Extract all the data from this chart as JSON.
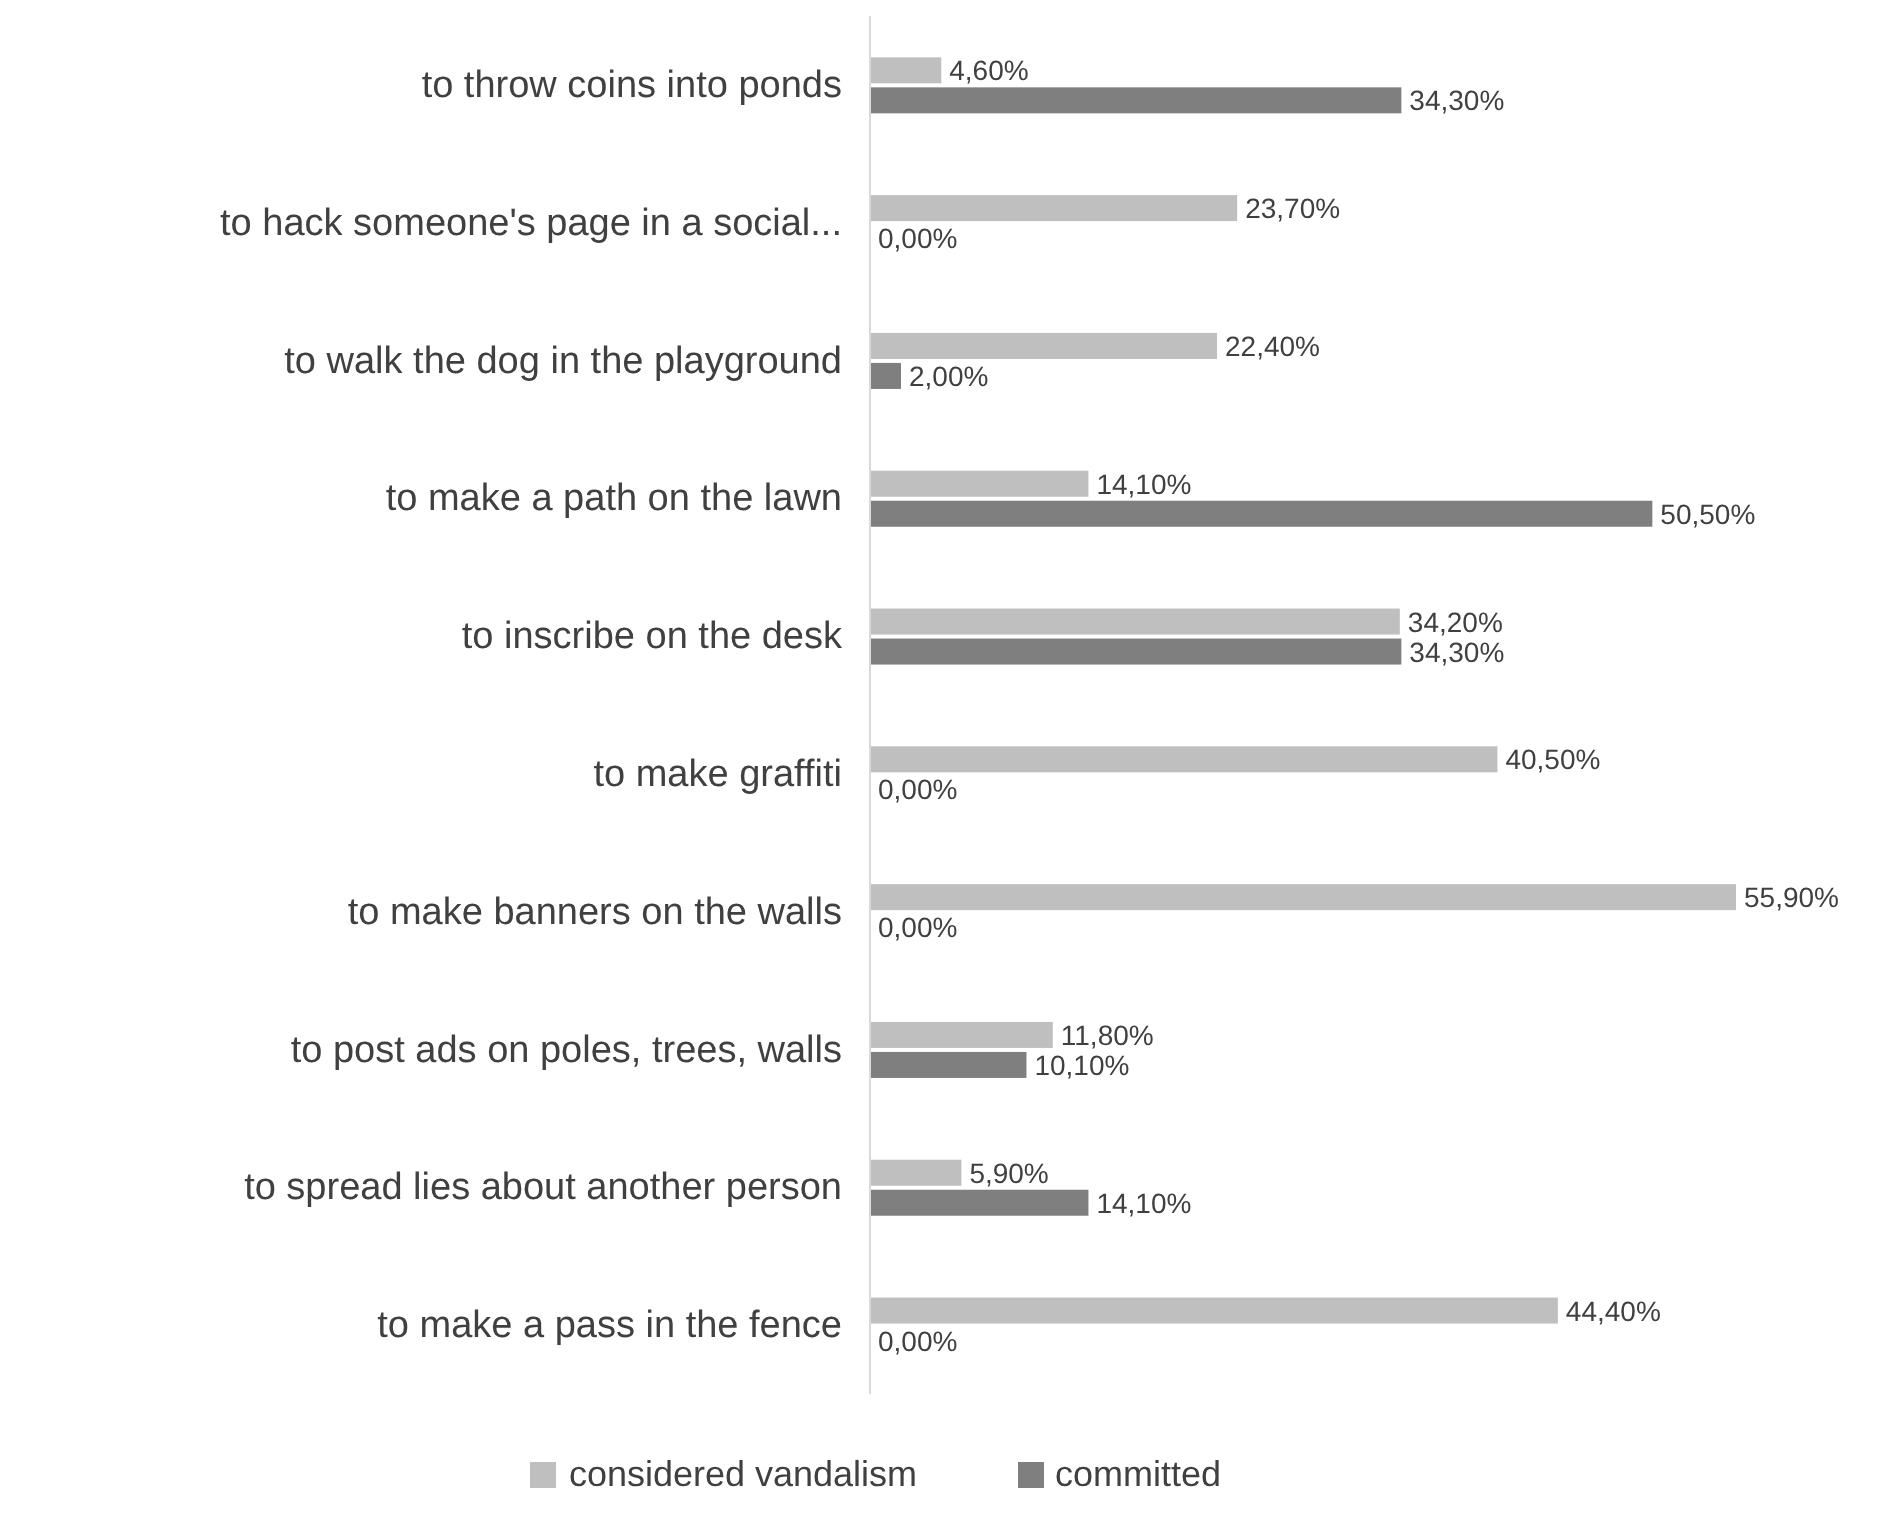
{
  "chart_data": {
    "type": "bar",
    "orientation": "horizontal",
    "categories": [
      "to throw coins into ponds",
      "to hack someone's page in a social...",
      "to walk the dog in the playground",
      "to make a path on the lawn",
      "to inscribe on the desk",
      "to make graffiti",
      "to make banners on the walls",
      "to post ads on poles, trees, walls",
      "to spread lies about another person",
      "to make a pass in the fence"
    ],
    "series": [
      {
        "name": "considered vandalism",
        "color": "#bfbfbf",
        "values": [
          4.6,
          23.7,
          22.4,
          14.1,
          34.2,
          40.5,
          55.9,
          11.8,
          5.9,
          44.4
        ],
        "value_labels": [
          "4,60%",
          "23,70%",
          "22,40%",
          "14,10%",
          "34,20%",
          "40,50%",
          "55,90%",
          "11,80%",
          "5,90%",
          "44,40%"
        ]
      },
      {
        "name": "committed",
        "color": "#7f7f7f",
        "values": [
          34.3,
          0,
          2,
          50.5,
          34.3,
          0,
          0,
          10.1,
          14.1,
          0
        ],
        "value_labels": [
          "34,30%",
          "0,00%",
          "2,00%",
          "50,50%",
          "34,30%",
          "0,00%",
          "0,00%",
          "10,10%",
          "14,10%",
          "0,00%"
        ]
      }
    ],
    "legend": "bottom",
    "grid": false
  }
}
